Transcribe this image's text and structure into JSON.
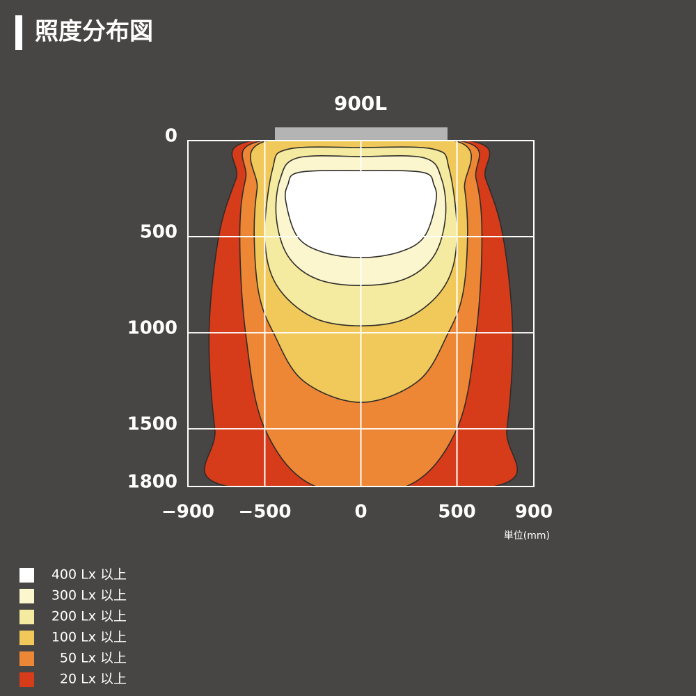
{
  "chart_data": {
    "type": "contour",
    "title": "照度分布図",
    "subtitle": "900L",
    "unit_label": "単位(mm)",
    "xlim": [
      -900,
      900
    ],
    "ylim": [
      0,
      1800
    ],
    "y_inverted": true,
    "xticks": [
      {
        "value": -900,
        "label": "−900"
      },
      {
        "value": -500,
        "label": "−500"
      },
      0,
      500,
      900
    ],
    "yticks": [
      0,
      500,
      1000,
      1500,
      1800
    ],
    "grid": true,
    "series": [
      {
        "name": "20 Lx 以上",
        "color": "#d63b1a",
        "x": [
          560,
          650,
          740,
          790,
          760,
          690,
          -690,
          -760,
          -790,
          -740,
          -650,
          -560
        ],
        "y": [
          0,
          200,
          500,
          1000,
          1500,
          1800,
          1800,
          1500,
          1000,
          500,
          200,
          0
        ]
      },
      {
        "name": "50 Lx 以上",
        "color": "#ee8735",
        "x": [
          510,
          600,
          630,
          600,
          500,
          235,
          -235,
          -500,
          -600,
          -630,
          -600,
          -510
        ],
        "y": [
          0,
          200,
          500,
          1000,
          1500,
          1800,
          1800,
          1500,
          1000,
          500,
          200,
          0
        ]
      },
      {
        "name": "100 Lx 以上",
        "color": "#f1c95a",
        "x": [
          485,
          540,
          555,
          530,
          455,
          300,
          0,
          -300,
          -455,
          -530,
          -555,
          -540,
          -485
        ],
        "y": [
          0,
          250,
          500,
          800,
          1000,
          1250,
          1362,
          1250,
          1000,
          800,
          500,
          250,
          0
        ]
      },
      {
        "name": "200 Lx 以上",
        "color": "#f5eba0",
        "x": [
          0,
          380,
          460,
          500,
          440,
          250,
          0,
          -250,
          -440,
          -500,
          -460,
          -380
        ],
        "y": [
          36,
          45,
          150,
          500,
          750,
          920,
          964,
          920,
          750,
          500,
          150,
          45
        ]
      },
      {
        "name": "300 Lx 以上",
        "color": "#fbf6cd",
        "x": [
          0,
          330,
          420,
          440,
          380,
          230,
          0,
          -230,
          -380,
          -440,
          -420,
          -330
        ],
        "y": [
          83,
          90,
          200,
          400,
          600,
          720,
          754,
          720,
          600,
          400,
          200,
          90
        ]
      },
      {
        "name": "400 Lx 以上",
        "color": "#ffffff",
        "x": [
          0,
          320,
          380,
          390,
          330,
          200,
          0,
          -200,
          -330,
          -390,
          -380,
          -320
        ],
        "y": [
          156,
          165,
          230,
          320,
          500,
          580,
          609,
          580,
          500,
          320,
          230,
          165
        ]
      }
    ]
  }
}
